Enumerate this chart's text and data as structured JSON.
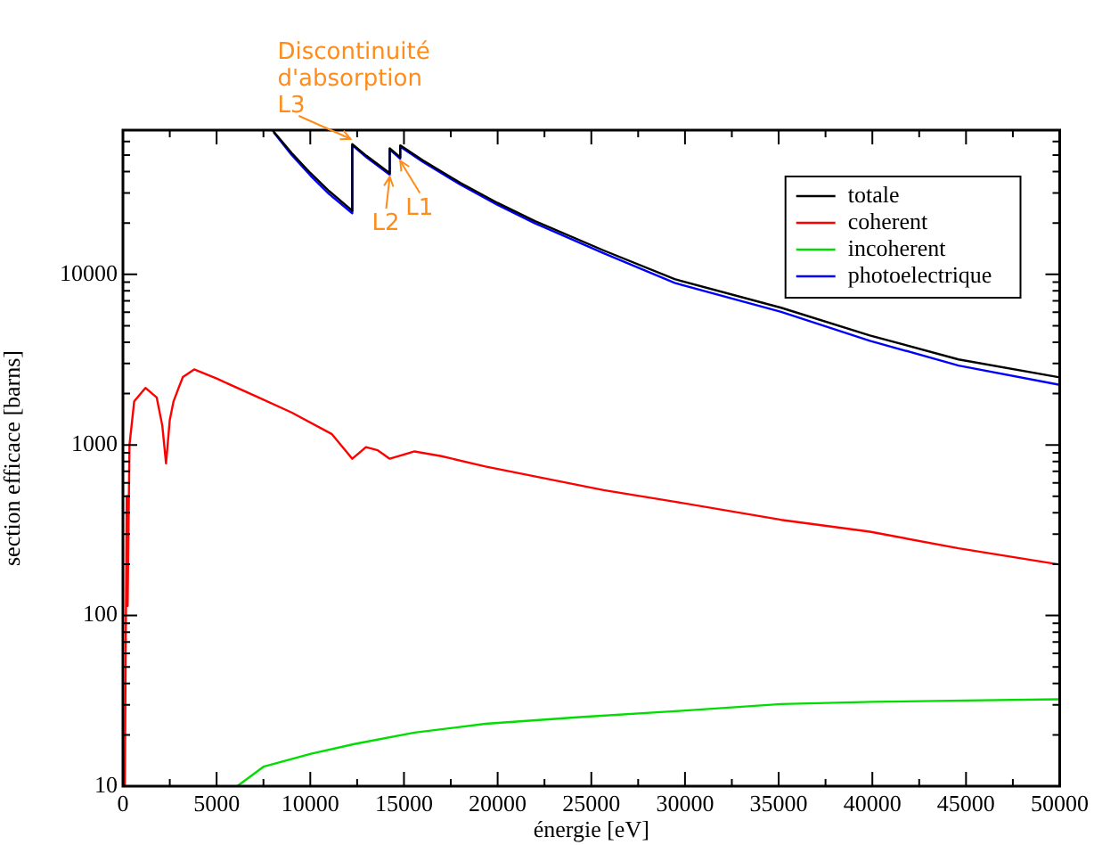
{
  "chart_data": {
    "type": "line",
    "xlabel": "énergie [eV]",
    "ylabel": "section efficace [barns]",
    "log": "y",
    "legend": "top right",
    "grid": false,
    "marker": "none",
    "line_style": "solid",
    "xlim": [
      0,
      50000
    ],
    "ylim": [
      10,
      70000
    ],
    "xticks": [
      0,
      {
        "value": 2500,
        "label": null
      },
      5000,
      {
        "value": 7500,
        "label": null
      },
      10000,
      {
        "value": 12500,
        "label": null
      },
      15000,
      {
        "value": 17500,
        "label": null
      },
      20000,
      {
        "value": 22500,
        "label": null
      },
      25000,
      {
        "value": 27500,
        "label": null
      },
      30000,
      {
        "value": 32500,
        "label": null
      },
      35000,
      {
        "value": 37500,
        "label": null
      },
      40000,
      {
        "value": 42500,
        "label": null
      },
      45000,
      {
        "value": 47500,
        "label": null
      },
      50000
    ],
    "yticks": [
      10,
      {
        "value": 20,
        "label": null
      },
      {
        "value": 30,
        "label": null
      },
      {
        "value": 40,
        "label": null
      },
      {
        "value": 50,
        "label": null
      },
      {
        "value": 60,
        "label": null
      },
      {
        "value": 70,
        "label": null
      },
      {
        "value": 80,
        "label": null
      },
      {
        "value": 90,
        "label": null
      },
      100,
      {
        "value": 200,
        "label": null
      },
      {
        "value": 300,
        "label": null
      },
      {
        "value": 400,
        "label": null
      },
      {
        "value": 500,
        "label": null
      },
      {
        "value": 600,
        "label": null
      },
      {
        "value": 700,
        "label": null
      },
      {
        "value": 800,
        "label": null
      },
      {
        "value": 900,
        "label": null
      },
      1000,
      {
        "value": 2000,
        "label": null
      },
      {
        "value": 3000,
        "label": null
      },
      {
        "value": 4000,
        "label": null
      },
      {
        "value": 5000,
        "label": null
      },
      {
        "value": 6000,
        "label": null
      },
      {
        "value": 7000,
        "label": null
      },
      {
        "value": 8000,
        "label": null
      },
      {
        "value": 9000,
        "label": null
      },
      10000,
      {
        "value": 20000,
        "label": null
      },
      {
        "value": 30000,
        "label": null
      },
      {
        "value": 40000,
        "label": null
      },
      {
        "value": 50000,
        "label": null
      },
      {
        "value": 60000,
        "label": null
      },
      {
        "value": 70000,
        "label": null
      }
    ],
    "series": [
      {
        "name": "totale",
        "color": "#000000",
        "x": [
          7980,
          9000,
          10000,
          11000,
          12240,
          12240,
          13000,
          14240,
          14240,
          14800,
          14800,
          16000,
          18000,
          20000,
          22000,
          25660,
          29450,
          35130,
          39870,
          44600,
          50000
        ],
        "values": [
          70000,
          51500,
          39300,
          30800,
          23600,
          57900,
          49500,
          39200,
          54800,
          48500,
          57000,
          46600,
          34400,
          26200,
          20500,
          13800,
          9370,
          6370,
          4380,
          3170,
          2490
        ]
      },
      {
        "name": "coherent",
        "color": "#ff0000",
        "x": [
          100,
          200,
          250,
          350,
          600,
          1200,
          1800,
          2100,
          2300,
          2500,
          2700,
          3000,
          3200,
          3800,
          5000,
          7000,
          9000,
          11140,
          11800,
          12240,
          12970,
          13600,
          14240,
          15560,
          17000,
          19350,
          25660,
          29450,
          35130,
          39870,
          44600,
          50000
        ],
        "values": [
          10,
          500,
          114,
          1000,
          1800,
          2160,
          1900,
          1300,
          780,
          1400,
          1800,
          2200,
          2500,
          2770,
          2450,
          1950,
          1550,
          1160,
          950,
          830,
          970,
          930,
          830,
          916,
          860,
          748,
          543,
          465,
          364,
          310,
          248,
          199
        ]
      },
      {
        "name": "incoherent",
        "color": "#00dd00",
        "x": [
          6100,
          7500,
          10040,
          12400,
          15560,
          19350,
          24400,
          29450,
          35130,
          40000,
          45000,
          50000
        ],
        "values": [
          10,
          13,
          15.5,
          17.7,
          20.6,
          23.2,
          25.4,
          27.5,
          30.3,
          31.2,
          31.8,
          32.3
        ]
      },
      {
        "name": "photoelectrique",
        "color": "#0000ff",
        "x": [
          8050,
          9000,
          10000,
          11000,
          12240,
          12240,
          13000,
          14240,
          14240,
          14800,
          14800,
          16000,
          18000,
          20000,
          22000,
          25660,
          29450,
          35130,
          39870,
          44600,
          50000
        ],
        "values": [
          68000,
          50100,
          38000,
          29600,
          22800,
          57100,
          48500,
          38400,
          54000,
          47600,
          56100,
          45700,
          33600,
          25500,
          19900,
          13300,
          8900,
          6030,
          4080,
          2920,
          2250
        ]
      }
    ],
    "annotations": [
      {
        "text": "Discontinuité\nd'absorption\nL3",
        "x": 12240,
        "y": 57900
      },
      {
        "text": "L2",
        "x": 14240,
        "y": 39200
      },
      {
        "text": "L1",
        "x": 14800,
        "y": 48500
      }
    ]
  }
}
